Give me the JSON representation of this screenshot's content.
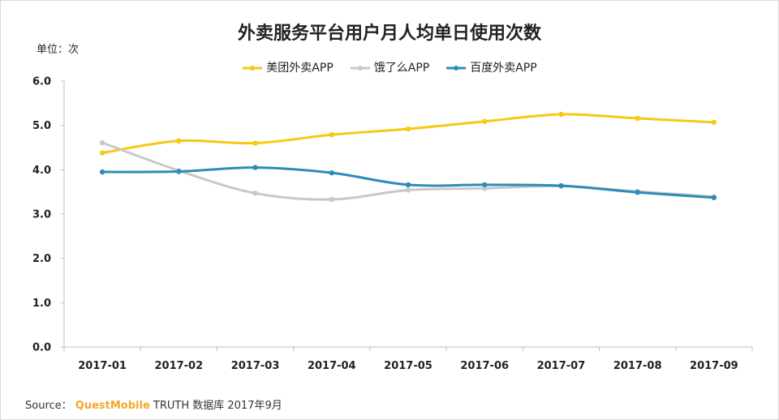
{
  "chart_data": {
    "type": "line",
    "title": "外卖服务平台用户月人均单日使用次数",
    "unit_label": "单位：次",
    "categories": [
      "2017-01",
      "2017-02",
      "2017-03",
      "2017-04",
      "2017-05",
      "2017-06",
      "2017-07",
      "2017-08",
      "2017-09"
    ],
    "ylim": [
      0,
      6
    ],
    "yticks": [
      "0.0",
      "1.0",
      "2.0",
      "3.0",
      "4.0",
      "5.0",
      "6.0"
    ],
    "grid": false,
    "legend_position": "top",
    "series": [
      {
        "name": "美团外卖APP",
        "color": "#f7c814",
        "values": [
          4.38,
          4.65,
          4.6,
          4.79,
          4.92,
          5.09,
          5.25,
          5.16,
          5.07
        ]
      },
      {
        "name": "饿了么APP",
        "color": "#c8c8c8",
        "values": [
          4.61,
          3.98,
          3.47,
          3.33,
          3.54,
          3.58,
          3.63,
          3.51,
          3.39
        ]
      },
      {
        "name": "百度外卖APP",
        "color": "#2b8db8",
        "values": [
          3.95,
          3.96,
          4.05,
          3.93,
          3.66,
          3.66,
          3.64,
          3.49,
          3.37
        ]
      }
    ]
  },
  "source": {
    "prefix": "Source：",
    "brand": "QuestMobile",
    "suffix": "TRUTH 数据库 2017年9月"
  }
}
